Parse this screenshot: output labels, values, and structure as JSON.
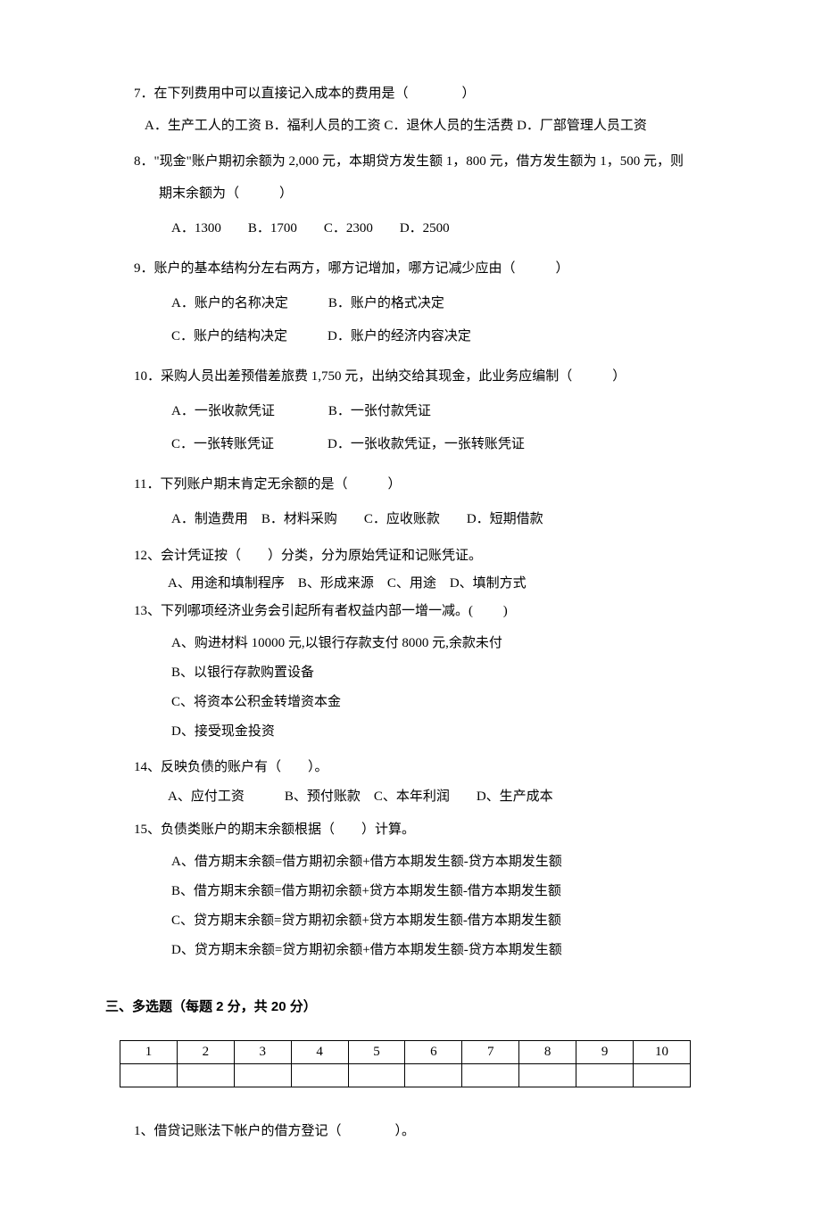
{
  "questions": {
    "q7": {
      "stem": "7．在下列费用中可以直接记入成本的费用是（　　　　）",
      "opts": "A．生产工人的工资 B．福利人员的工资 C．退休人员的生活费 D．厂部管理人员工资"
    },
    "q8": {
      "stem1": "8．\"现金\"账户期初余额为 2,000 元，本期贷方发生额 1，800 元，借方发生额为 1，500 元，则",
      "stem2": "期末余额为（　　　）",
      "opts": "A．1300　　B．1700　　C．2300　　D．2500"
    },
    "q9": {
      "stem": "9．账户的基本结构分左右两方，哪方记增加，哪方记减少应由（　　　）",
      "opt1": "A．账户的名称决定　　　B．账户的格式决定",
      "opt2": "C．账户的结构决定　　　D．账户的经济内容决定"
    },
    "q10": {
      "stem": "10．采购人员出差预借差旅费 1,750 元，出纳交给其现金，此业务应编制（　　　）",
      "opt1": "A．一张收款凭证　　　　B．一张付款凭证",
      "opt2": "C．一张转账凭证　　　　D．一张收款凭证，一张转账凭证"
    },
    "q11": {
      "stem": "11．下列账户期末肯定无余额的是（　　　）",
      "opts": "A．制造费用　B．材料采购　　C．应收账款　　D．短期借款"
    },
    "q12": {
      "stem": "12、会计凭证按（　　）分类，分为原始凭证和记账凭证。",
      "opts": "A、用途和填制程序　B、形成来源　C、用途　D、填制方式"
    },
    "q13": {
      "stem": "13、下列哪项经济业务会引起所有者权益内部一增一减。(　　 )",
      "optA": "A、购进材料 10000 元,以银行存款支付 8000 元,余款未付",
      "optB": "B、以银行存款购置设备",
      "optC": "C、将资本公积金转增资本金",
      "optD": "D、接受现金投资"
    },
    "q14": {
      "stem": "14、反映负债的账户有（　　）。",
      "opts": "A、应付工资　　　B、预付账款　C、本年利润　　D、生产成本"
    },
    "q15": {
      "stem": "15、负债类账户的期末余额根据（　　）计算。",
      "optA": "A、借方期末余额=借方期初余额+借方本期发生额-贷方本期发生额",
      "optB": "B、借方期末余额=借方期初余额+贷方本期发生额-借方本期发生额",
      "optC": "C、贷方期末余额=贷方期初余额+贷方本期发生额-借方本期发生额",
      "optD": "D、贷方期末余额=贷方期初余额+借方本期发生额-贷方本期发生额"
    }
  },
  "section3": {
    "header": "三、多选题（每题 2 分，共 20 分）",
    "table_headers": [
      "1",
      "2",
      "3",
      "4",
      "5",
      "6",
      "7",
      "8",
      "9",
      "10"
    ],
    "q1": "1、借贷记账法下帐户的借方登记（　　　　）。"
  }
}
